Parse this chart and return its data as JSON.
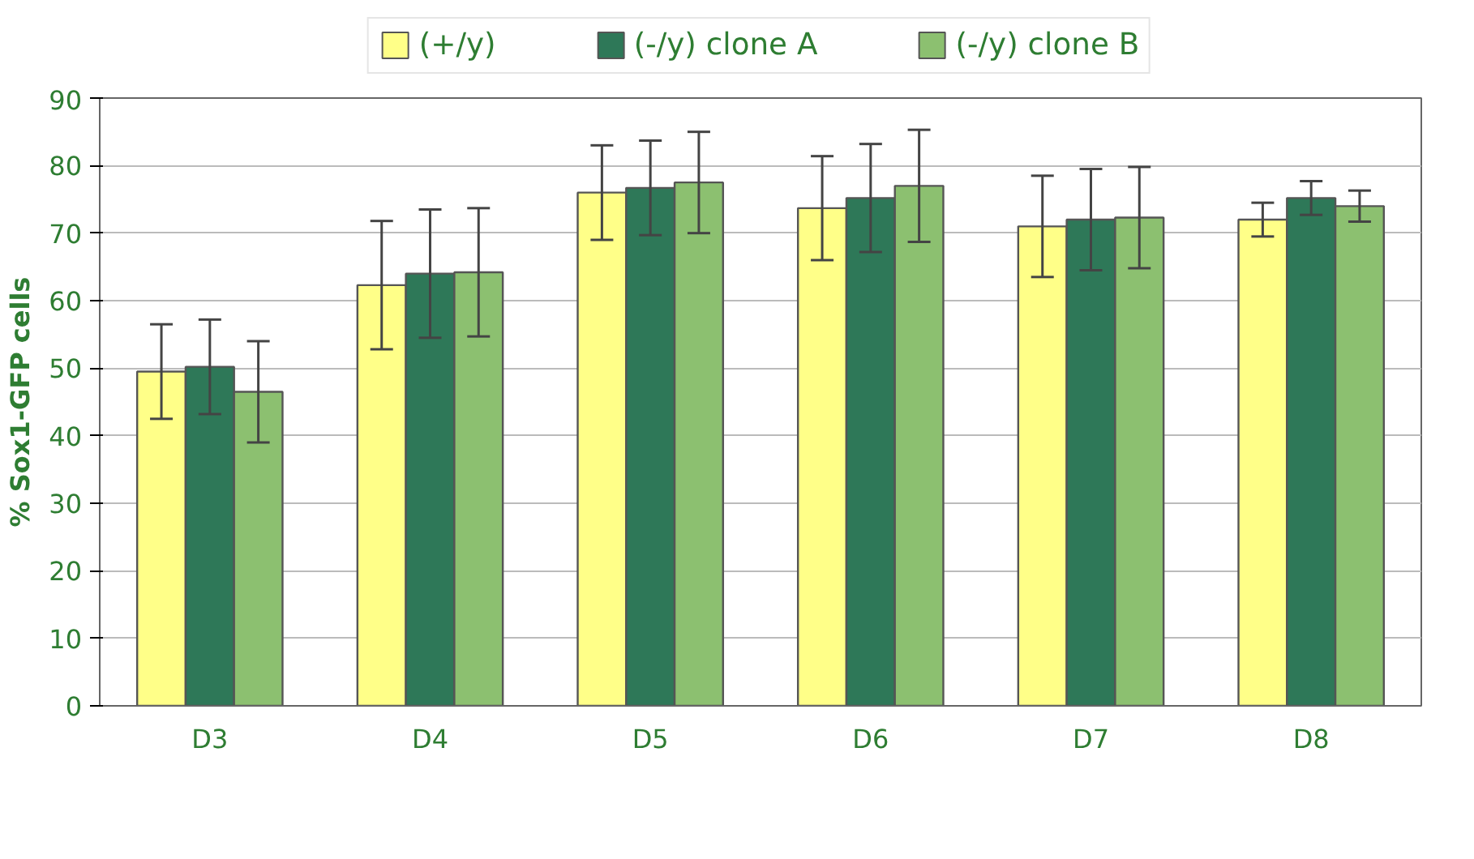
{
  "chart_data": {
    "type": "bar",
    "ylabel": "% Sox1-GFP cells",
    "categories": [
      "D3",
      "D4",
      "D5",
      "D6",
      "D7",
      "D8"
    ],
    "ylim": [
      0,
      90
    ],
    "yticks": [
      0,
      10,
      20,
      30,
      40,
      50,
      60,
      70,
      80,
      90
    ],
    "grid": "y",
    "legend": "top",
    "series": [
      {
        "name": "(+/y)",
        "color": "#ffff88",
        "values": [
          49.5,
          62.3,
          76,
          73.7,
          71,
          72
        ],
        "errors": [
          7,
          9.5,
          7,
          7.7,
          7.5,
          2.5
        ]
      },
      {
        "name": "(-/y) clone A",
        "color": "#2e7858",
        "values": [
          50.2,
          64,
          76.7,
          75.2,
          72,
          75.2
        ],
        "errors": [
          7,
          9.5,
          7,
          8,
          7.5,
          2.5
        ]
      },
      {
        "name": "(-/y) clone B",
        "color": "#8cc070",
        "values": [
          46.5,
          64.2,
          77.5,
          77,
          72.3,
          74
        ],
        "errors": [
          7.5,
          9.5,
          7.5,
          8.3,
          7.5,
          2.3
        ]
      }
    ]
  }
}
